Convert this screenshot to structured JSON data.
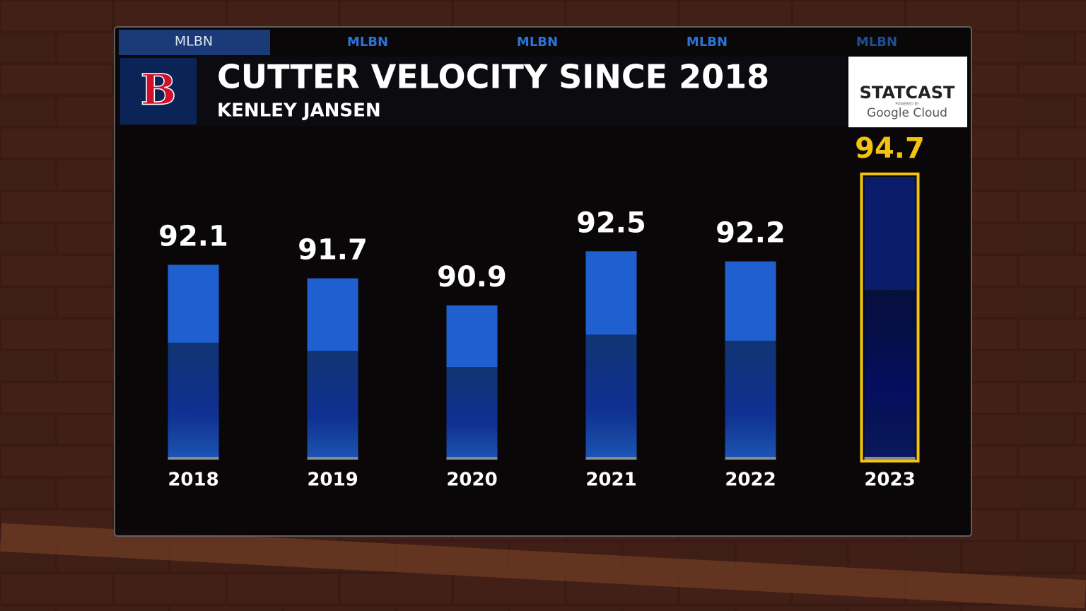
{
  "branding": {
    "tabs": [
      "MLBN",
      "MLBN",
      "MLBN",
      "MLBN",
      "MLBN"
    ],
    "team_logo": "B",
    "sponsor_name": "STATCAST",
    "sponsor_powered": "POWERED BY",
    "sponsor_partner": "Google Cloud"
  },
  "chart_data": {
    "type": "bar",
    "title": "CUTTER VELOCITY SINCE 2018",
    "subtitle": "KENLEY JANSEN",
    "categories": [
      "2018",
      "2019",
      "2020",
      "2021",
      "2022",
      "2023"
    ],
    "values": [
      92.1,
      91.7,
      90.9,
      92.5,
      92.2,
      94.7
    ],
    "color": "#1f5fd0",
    "highlight": "2023",
    "highlight_color": "#f2c40f"
  }
}
